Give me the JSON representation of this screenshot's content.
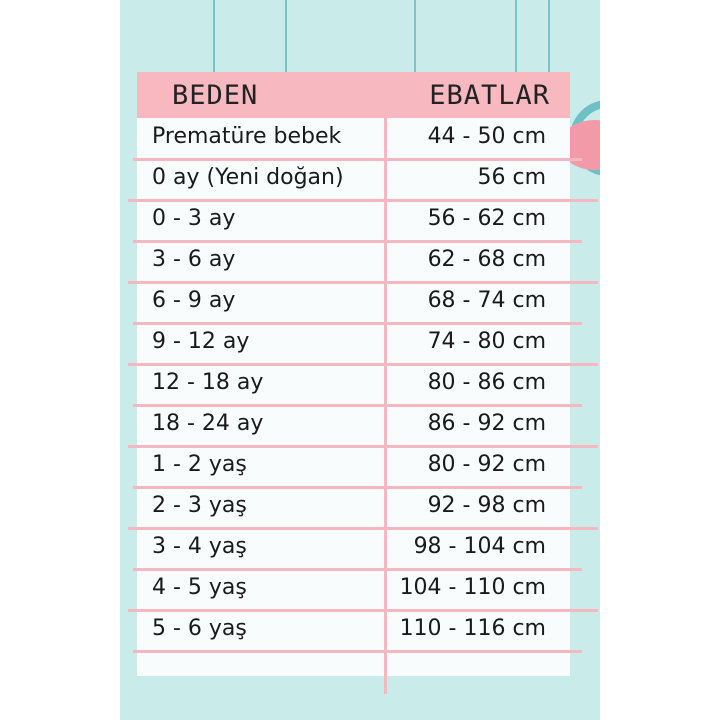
{
  "header": {
    "col1": "BEDEN",
    "col2": "EBATLAR"
  },
  "rows": [
    {
      "size": "Prematüre bebek",
      "range": "44 - 50 cm"
    },
    {
      "size": "0 ay (Yeni doğan)",
      "range": "56 cm"
    },
    {
      "size": "0 - 3 ay",
      "range": "56 - 62 cm"
    },
    {
      "size": "3 - 6 ay",
      "range": "62 - 68 cm"
    },
    {
      "size": "6 - 9 ay",
      "range": "68 - 74 cm"
    },
    {
      "size": "9 - 12 ay",
      "range": "74 - 80 cm"
    },
    {
      "size": "12 - 18 ay",
      "range": "80 - 86 cm"
    },
    {
      "size": "18 - 24 ay",
      "range": "86 - 92 cm"
    },
    {
      "size": "1 - 2 yaş",
      "range": "80 - 92 cm"
    },
    {
      "size": "2 - 3 yaş",
      "range": "92 - 98 cm"
    },
    {
      "size": "3 - 4 yaş",
      "range": "98 - 104 cm"
    },
    {
      "size": "4 - 5 yaş",
      "range": "104 - 110 cm"
    },
    {
      "size": "5 - 6 yaş",
      "range": "110 - 116 cm"
    }
  ],
  "colors": {
    "background": "#c9ecea",
    "header": "#f7b8c0",
    "lines": "#f5b8c0"
  }
}
